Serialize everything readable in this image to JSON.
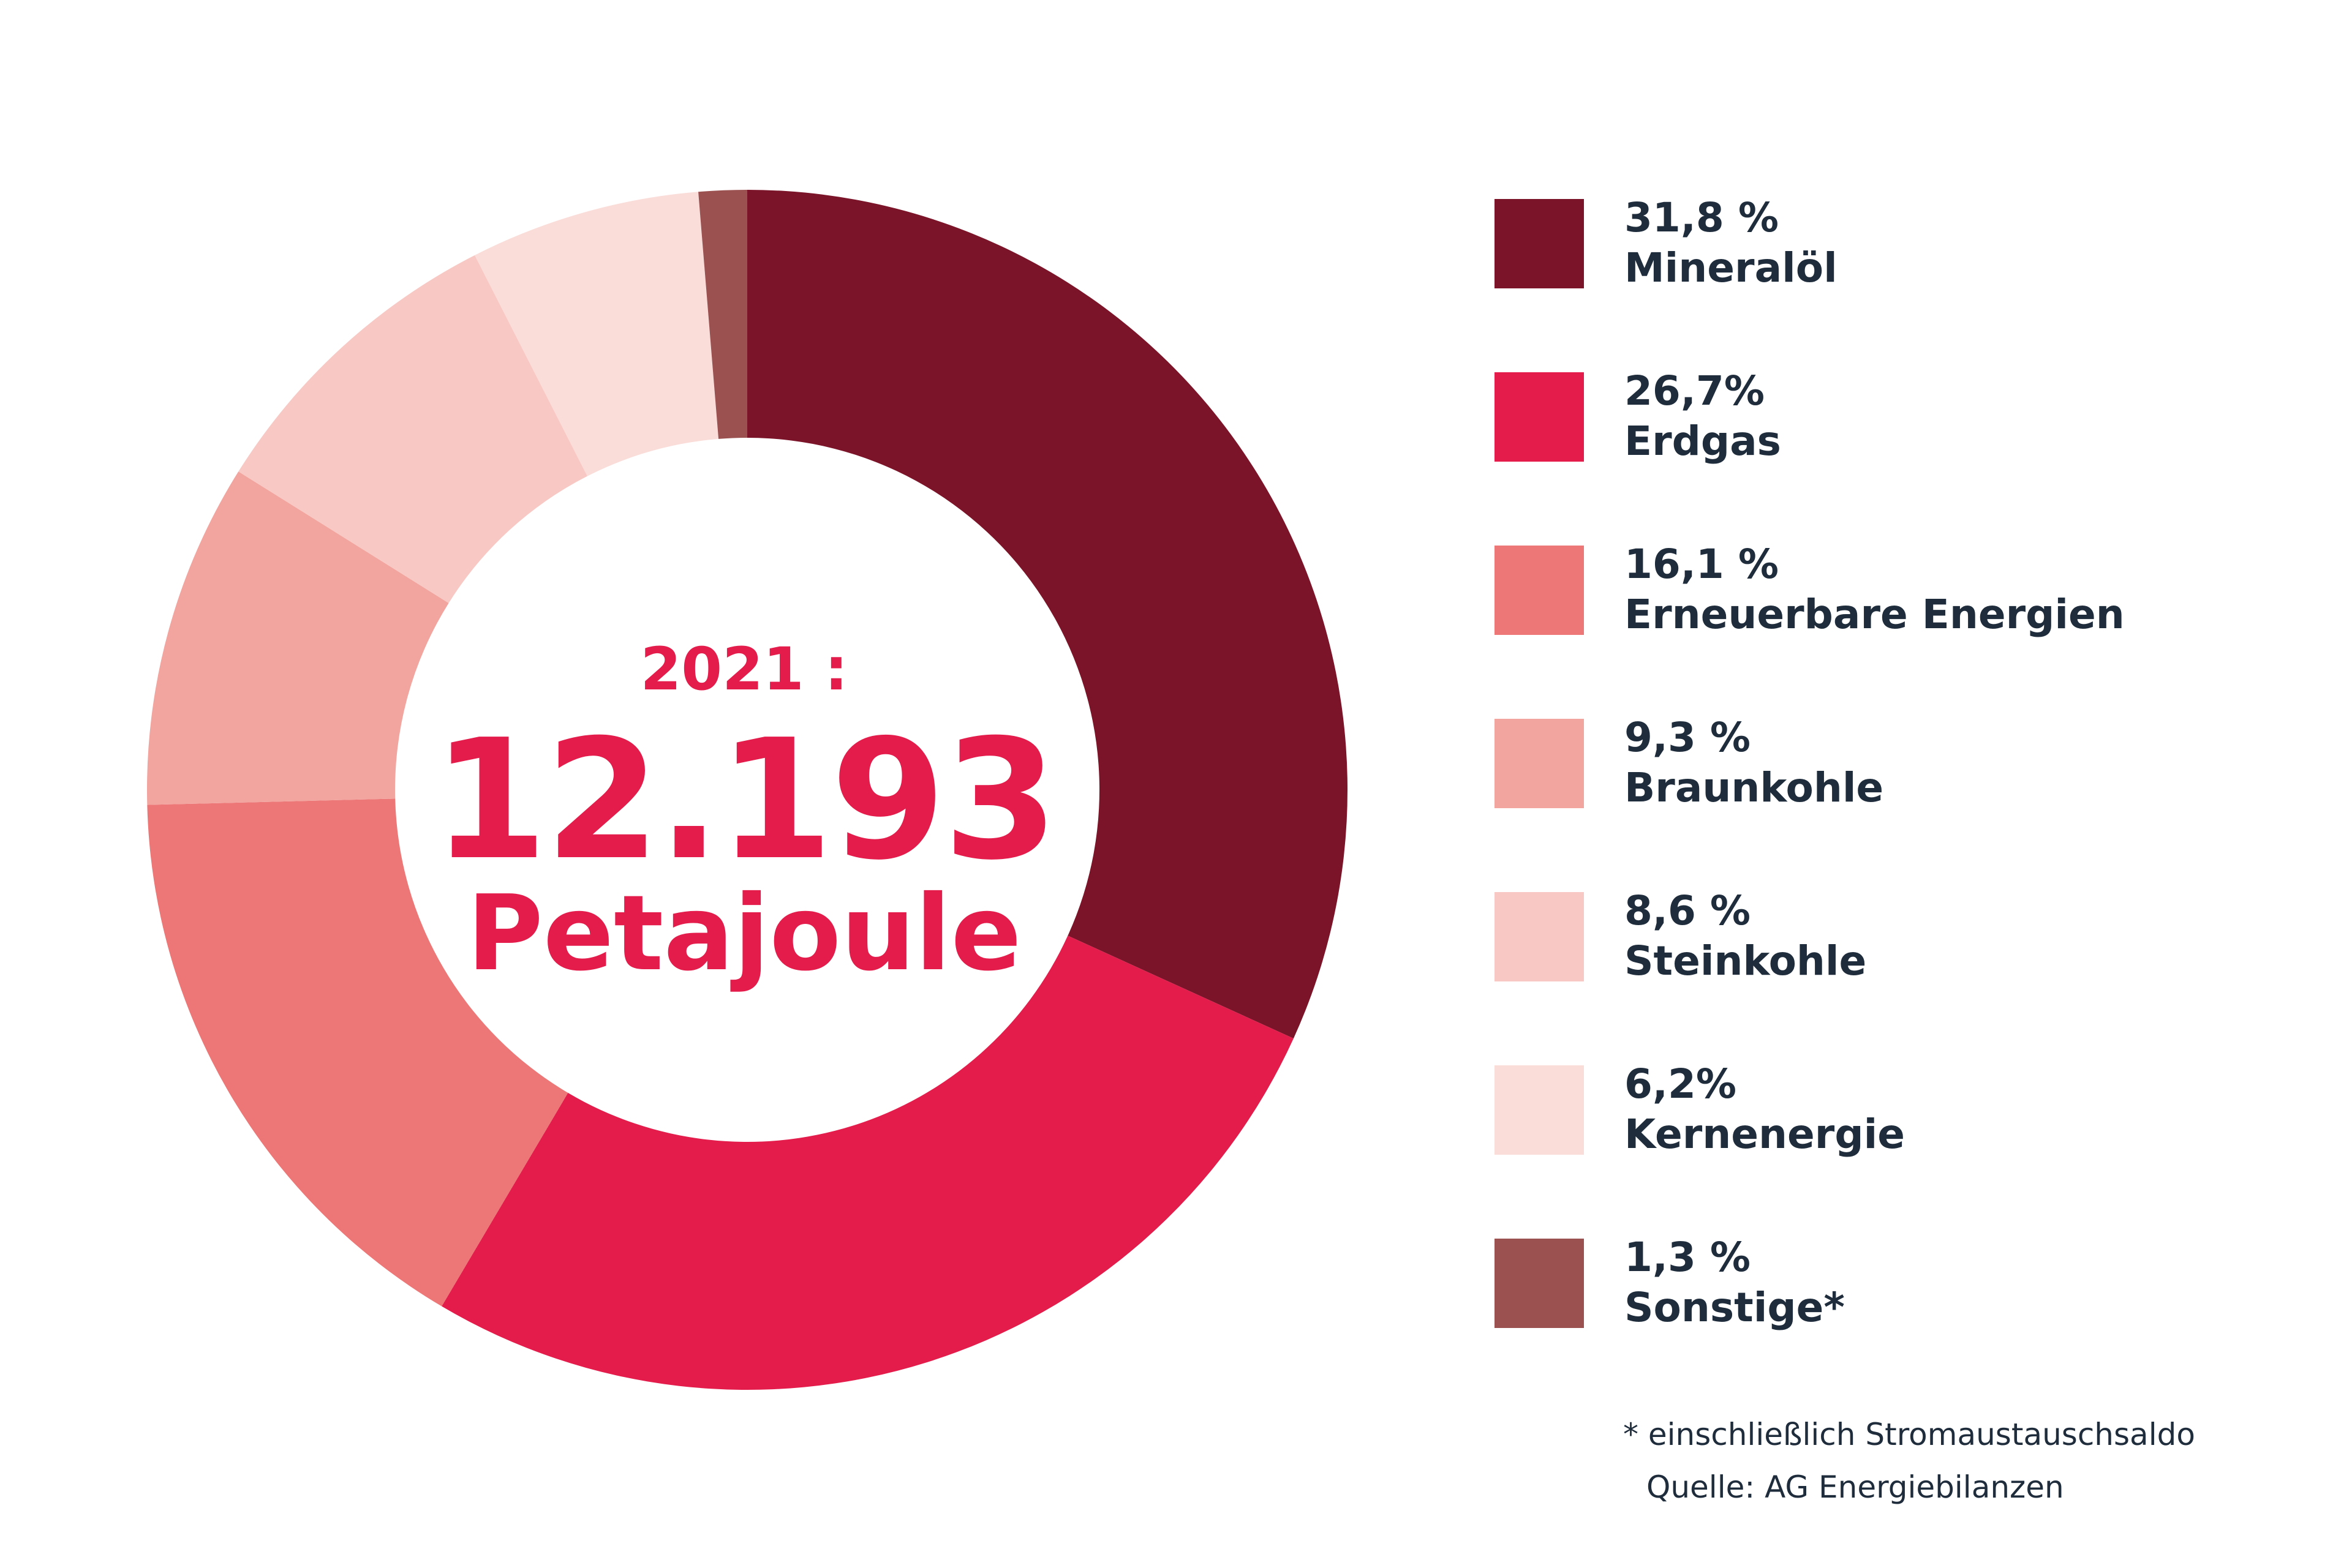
{
  "chart_data": {
    "type": "pie",
    "donut": true,
    "center": {
      "year": "2021 :",
      "value": "12.193",
      "unit": "Petajoule"
    },
    "slices": [
      {
        "label": "Mineralöl",
        "percent_label": "31,8 %",
        "value": 31.8,
        "color": "#7c1429"
      },
      {
        "label": "Erdgas",
        "percent_label": "26,7%",
        "value": 26.7,
        "color": "#e31c4b"
      },
      {
        "label": "Erneuerbare Energien",
        "percent_label": "16,1 %",
        "value": 16.1,
        "color": "#ed7777"
      },
      {
        "label": "Braunkohle",
        "percent_label": "9,3 %",
        "value": 9.3,
        "color": "#f2a49f"
      },
      {
        "label": "Steinkohle",
        "percent_label": "8,6 %",
        "value": 8.6,
        "color": "#f8c9c4"
      },
      {
        "label": "Kernenergie",
        "percent_label": "6,2%",
        "value": 6.2,
        "color": "#fadcd8"
      },
      {
        "label": "Sonstige*",
        "percent_label": "1,3 %",
        "value": 1.3,
        "color": "#9c5151"
      }
    ],
    "legend_position": "right",
    "footnotes": [
      "* einschließlich Stromaustauschsaldo",
      "Quelle: AG Energiebilanzen"
    ]
  }
}
